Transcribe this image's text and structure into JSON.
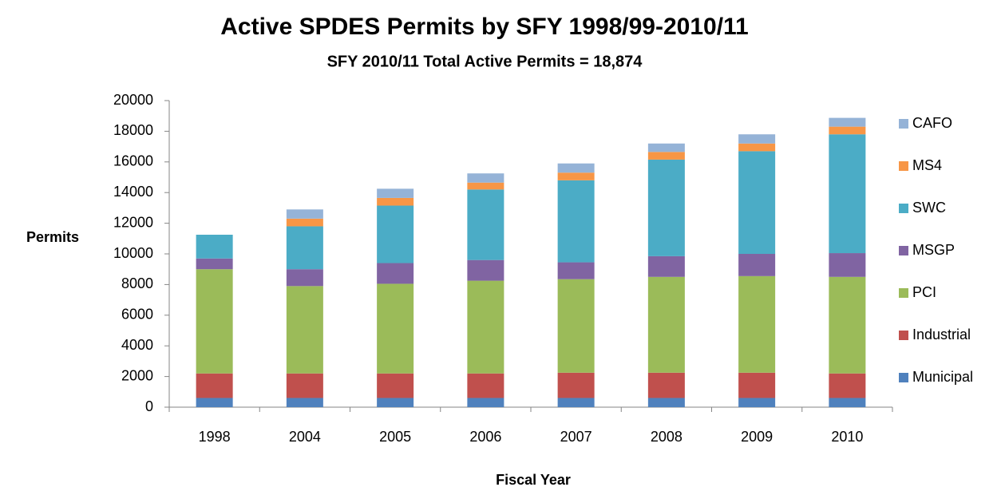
{
  "chart_data": {
    "type": "stacked_bar",
    "title": "Active SPDES Permits by SFY 1998/99-2010/11",
    "subtitle": "SFY 2010/11 Total Active Permits = 18,874",
    "y_label": "Permits",
    "x_label": "Fiscal Year",
    "categories": [
      "1998",
      "2004",
      "2005",
      "2006",
      "2007",
      "2008",
      "2009",
      "2010"
    ],
    "series": [
      {
        "name": "Municipal",
        "color": "#4f81bd",
        "values": [
          600,
          600,
          600,
          600,
          600,
          600,
          600,
          600
        ]
      },
      {
        "name": "Industrial",
        "color": "#c0504d",
        "values": [
          1600,
          1600,
          1600,
          1600,
          1650,
          1650,
          1650,
          1600
        ]
      },
      {
        "name": "PCI",
        "color": "#9bbb59",
        "values": [
          6800,
          5700,
          5850,
          6050,
          6100,
          6250,
          6300,
          6300
        ]
      },
      {
        "name": "MSGP",
        "color": "#8064a2",
        "values": [
          700,
          1100,
          1350,
          1350,
          1100,
          1350,
          1450,
          1550
        ]
      },
      {
        "name": "SWC",
        "color": "#4bacc6",
        "values": [
          1550,
          2800,
          3750,
          4600,
          5350,
          6300,
          6700,
          7750
        ]
      },
      {
        "name": "MS4",
        "color": "#f79646",
        "values": [
          0,
          500,
          500,
          450,
          500,
          500,
          500,
          500
        ]
      },
      {
        "name": "CAFO",
        "color": "#95b3d7",
        "values": [
          0,
          600,
          600,
          600,
          600,
          550,
          600,
          574
        ]
      }
    ],
    "ylim": [
      0,
      20000
    ],
    "yticks": [
      0,
      2000,
      4000,
      6000,
      8000,
      10000,
      12000,
      14000,
      16000,
      18000,
      20000
    ],
    "legend": "right"
  }
}
